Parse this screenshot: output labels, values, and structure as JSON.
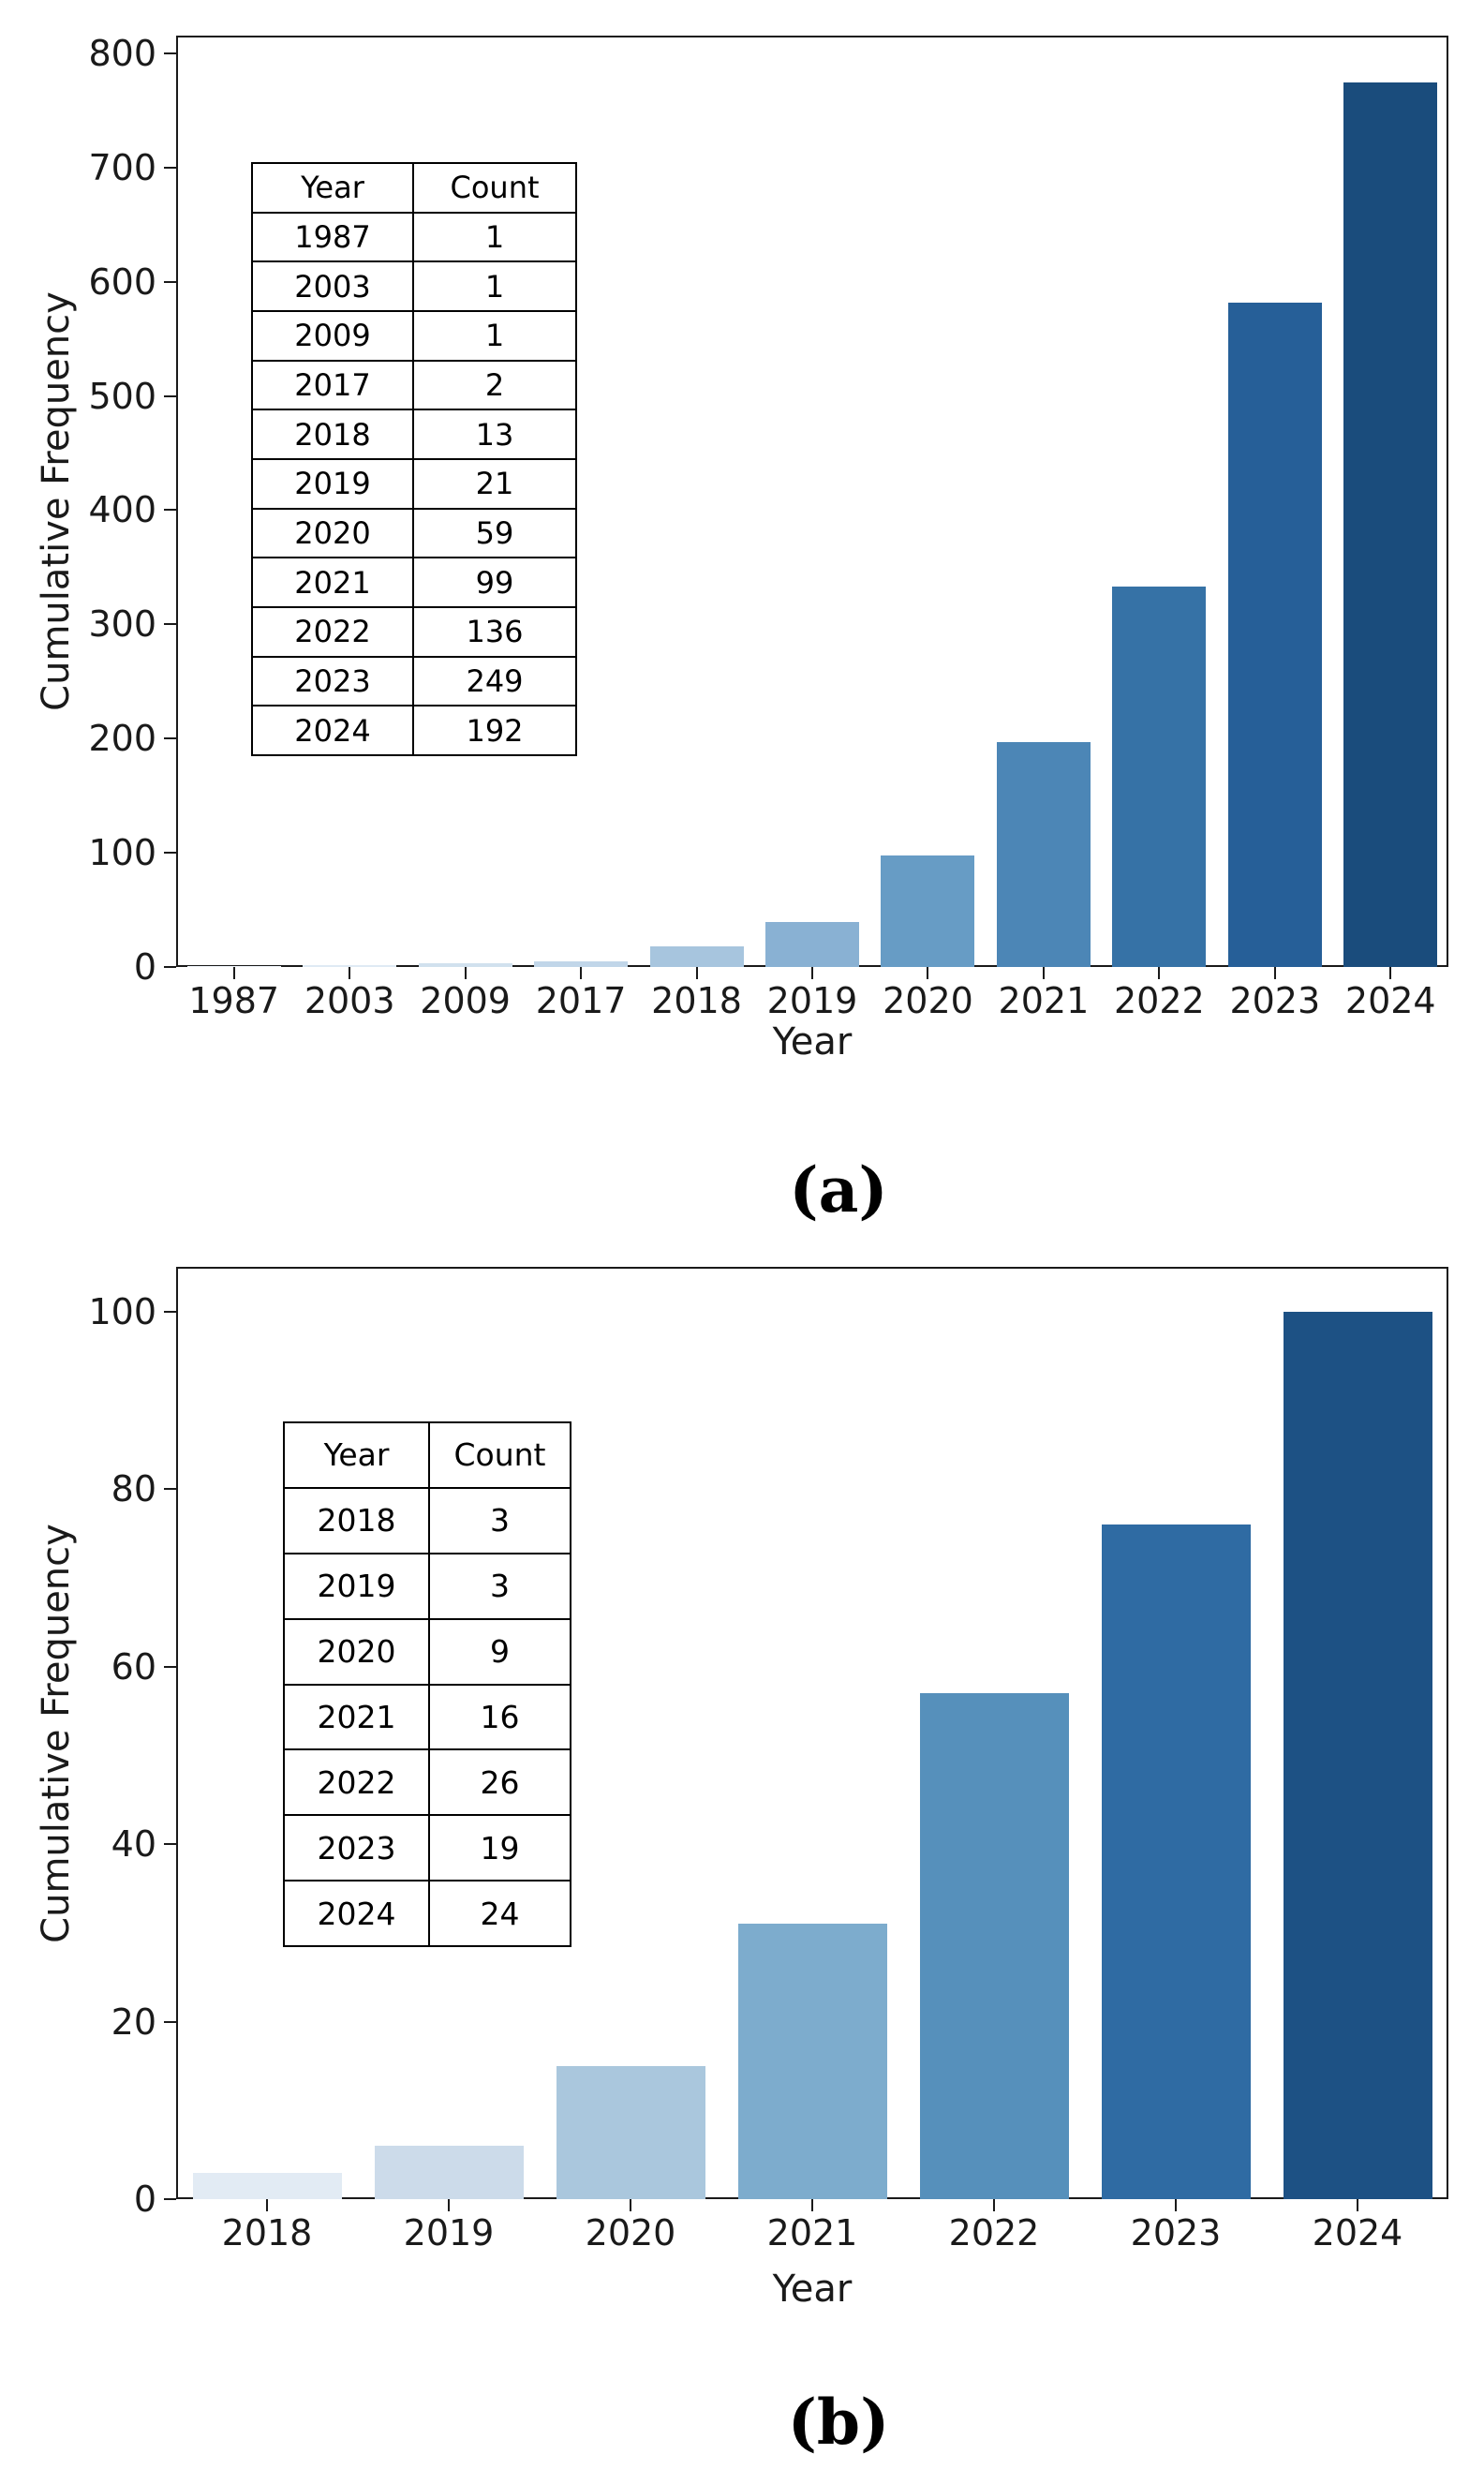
{
  "figure": {
    "background": "#ffffff"
  },
  "chart_data": [
    {
      "type": "bar",
      "panel": "a",
      "caption": "(a)",
      "title": "",
      "xlabel": "Year",
      "ylabel": "Cumulative Frequency",
      "categories": [
        "1987",
        "2003",
        "2009",
        "2017",
        "2018",
        "2019",
        "2020",
        "2021",
        "2022",
        "2023",
        "2024"
      ],
      "values": [
        1,
        2,
        3,
        5,
        18,
        39,
        98,
        197,
        333,
        582,
        774
      ],
      "annual_counts": [
        1,
        1,
        1,
        2,
        13,
        21,
        59,
        99,
        136,
        249,
        192
      ],
      "ylim": [
        0,
        800
      ],
      "yticks": [
        0,
        100,
        200,
        300,
        400,
        500,
        600,
        700,
        800
      ],
      "grid": false,
      "legend": "none",
      "bar_colors": [
        "#eff5fb",
        "#dfeaf4",
        "#d1e1ee",
        "#c1d6e9",
        "#a7c5de",
        "#89b1d3",
        "#679cc5",
        "#4c86b6",
        "#3672a6",
        "#265f98",
        "#1a4c7c"
      ],
      "inset_table": {
        "headers": [
          "Year",
          "Count"
        ],
        "rows": [
          [
            "1987",
            "1"
          ],
          [
            "2003",
            "1"
          ],
          [
            "2009",
            "1"
          ],
          [
            "2017",
            "2"
          ],
          [
            "2018",
            "13"
          ],
          [
            "2019",
            "21"
          ],
          [
            "2020",
            "59"
          ],
          [
            "2021",
            "99"
          ],
          [
            "2022",
            "136"
          ],
          [
            "2023",
            "249"
          ],
          [
            "2024",
            "192"
          ]
        ]
      }
    },
    {
      "type": "bar",
      "panel": "b",
      "caption": "(b)",
      "title": "",
      "xlabel": "Year",
      "ylabel": "Cumulative Frequency",
      "categories": [
        "2018",
        "2019",
        "2020",
        "2021",
        "2022",
        "2023",
        "2024"
      ],
      "values": [
        3,
        6,
        15,
        31,
        57,
        76,
        100
      ],
      "annual_counts": [
        3,
        3,
        9,
        16,
        26,
        19,
        24
      ],
      "ylim": [
        0,
        100
      ],
      "yticks": [
        0,
        20,
        40,
        60,
        80,
        100
      ],
      "grid": false,
      "legend": "none",
      "bar_colors": [
        "#e2ebf4",
        "#ccdbea",
        "#aac7dd",
        "#7daccd",
        "#5690bb",
        "#2f6ba3",
        "#1d5184"
      ],
      "inset_table": {
        "headers": [
          "Year",
          "Count"
        ],
        "rows": [
          [
            "2018",
            "3"
          ],
          [
            "2019",
            "3"
          ],
          [
            "2020",
            "9"
          ],
          [
            "2021",
            "16"
          ],
          [
            "2022",
            "26"
          ],
          [
            "2023",
            "19"
          ],
          [
            "2024",
            "24"
          ]
        ]
      }
    }
  ]
}
